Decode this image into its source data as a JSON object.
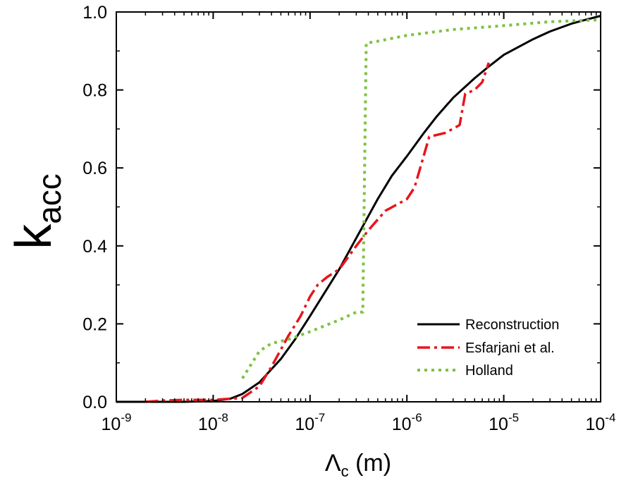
{
  "chart_data": {
    "type": "line",
    "xlabel": "Λc (m)",
    "xlabel_symbol": "Λ",
    "xlabel_sub": "c",
    "xlabel_unit": " (m)",
    "ylabel": "kacc",
    "ylabel_main": "k",
    "ylabel_sub": "acc",
    "x_scale": "log",
    "xlim": [
      1e-09,
      0.0001
    ],
    "ylim": [
      0.0,
      1.0
    ],
    "grid": false,
    "legend_position": "bottom-right",
    "x_ticks": [
      {
        "value": 1e-09,
        "base": "10",
        "exp": "-9"
      },
      {
        "value": 1e-08,
        "base": "10",
        "exp": "-8"
      },
      {
        "value": 1e-07,
        "base": "10",
        "exp": "-7"
      },
      {
        "value": 1e-06,
        "base": "10",
        "exp": "-6"
      },
      {
        "value": 1e-05,
        "base": "10",
        "exp": "-5"
      },
      {
        "value": 0.0001,
        "base": "10",
        "exp": "-4"
      }
    ],
    "y_ticks": [
      {
        "value": 0.0,
        "label": "0.0"
      },
      {
        "value": 0.2,
        "label": "0.2"
      },
      {
        "value": 0.4,
        "label": "0.4"
      },
      {
        "value": 0.6,
        "label": "0.6"
      },
      {
        "value": 0.8,
        "label": "0.8"
      },
      {
        "value": 1.0,
        "label": "1.0"
      }
    ],
    "series": [
      {
        "name": "Reconstruction",
        "color": "#000000",
        "style": "solid",
        "points": [
          [
            1e-09,
            0.0
          ],
          [
            5e-09,
            0.0
          ],
          [
            1e-08,
            0.002
          ],
          [
            1.5e-08,
            0.008
          ],
          [
            2e-08,
            0.02
          ],
          [
            3e-08,
            0.05
          ],
          [
            5e-08,
            0.11
          ],
          [
            7e-08,
            0.16
          ],
          [
            1e-07,
            0.22
          ],
          [
            1.5e-07,
            0.29
          ],
          [
            2e-07,
            0.34
          ],
          [
            3e-07,
            0.42
          ],
          [
            5e-07,
            0.52
          ],
          [
            7e-07,
            0.58
          ],
          [
            1e-06,
            0.63
          ],
          [
            1.5e-06,
            0.69
          ],
          [
            2e-06,
            0.73
          ],
          [
            3e-06,
            0.78
          ],
          [
            5e-06,
            0.83
          ],
          [
            7e-06,
            0.86
          ],
          [
            1e-05,
            0.89
          ],
          [
            2e-05,
            0.93
          ],
          [
            3e-05,
            0.95
          ],
          [
            5e-05,
            0.97
          ],
          [
            7e-05,
            0.98
          ],
          [
            0.0001,
            0.99
          ]
        ]
      },
      {
        "name": "Esfarjani et al.",
        "color": "#e8141c",
        "style": "dashdot",
        "points": [
          [
            2e-09,
            0.0
          ],
          [
            3e-09,
            0.003
          ],
          [
            5e-09,
            0.005
          ],
          [
            1e-08,
            0.005
          ],
          [
            2e-08,
            0.01
          ],
          [
            3e-08,
            0.04
          ],
          [
            4e-08,
            0.09
          ],
          [
            6e-08,
            0.17
          ],
          [
            8e-08,
            0.22
          ],
          [
            1e-07,
            0.27
          ],
          [
            1.2e-07,
            0.3
          ],
          [
            1.5e-07,
            0.32
          ],
          [
            2e-07,
            0.34
          ],
          [
            3e-07,
            0.4
          ],
          [
            4e-07,
            0.44
          ],
          [
            6e-07,
            0.49
          ],
          [
            1e-06,
            0.52
          ],
          [
            1.2e-06,
            0.55
          ],
          [
            1.7e-06,
            0.68
          ],
          [
            2.5e-06,
            0.69
          ],
          [
            3.5e-06,
            0.71
          ],
          [
            4e-06,
            0.79
          ],
          [
            5e-06,
            0.8
          ],
          [
            6e-06,
            0.82
          ],
          [
            7e-06,
            0.87
          ]
        ]
      },
      {
        "name": "Holland",
        "color": "#7dc242",
        "style": "dotted",
        "points": [
          [
            2e-08,
            0.06
          ],
          [
            3e-08,
            0.13
          ],
          [
            4e-08,
            0.15
          ],
          [
            6e-08,
            0.16
          ],
          [
            1e-07,
            0.18
          ],
          [
            2e-07,
            0.21
          ],
          [
            3e-07,
            0.23
          ],
          [
            3.5e-07,
            0.23
          ],
          [
            3.8e-07,
            0.92
          ],
          [
            5e-07,
            0.925
          ],
          [
            1e-06,
            0.94
          ],
          [
            3e-06,
            0.955
          ],
          [
            1e-05,
            0.965
          ],
          [
            3e-05,
            0.975
          ],
          [
            0.0001,
            0.98
          ]
        ]
      }
    ]
  }
}
